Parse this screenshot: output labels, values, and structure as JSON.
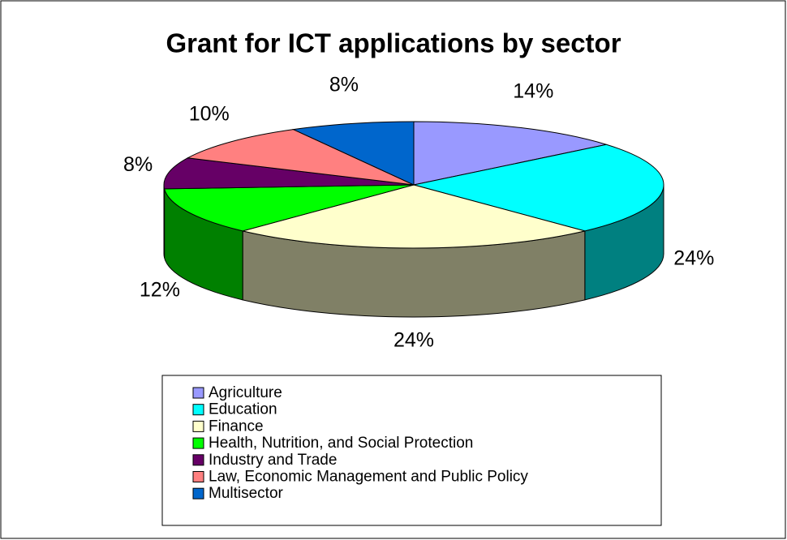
{
  "chart_data": {
    "type": "pie",
    "title": "Grant for ICT applications by sector",
    "categories": [
      "Agriculture",
      "Education",
      "Finance",
      "Health, Nutrition, and Social Protection",
      "Industry and Trade",
      "Law, Economic Management and Public Policy",
      "Multisector"
    ],
    "values": [
      14,
      24,
      24,
      12,
      8,
      10,
      8
    ],
    "value_labels": [
      "14%",
      "24%",
      "24%",
      "12%",
      "8%",
      "10%",
      "8%"
    ],
    "colors": [
      "#9999ff",
      "#00ffff",
      "#ffffcc",
      "#00ff00",
      "#660066",
      "#ff8080",
      "#0066cc"
    ],
    "legend": "bottom"
  }
}
